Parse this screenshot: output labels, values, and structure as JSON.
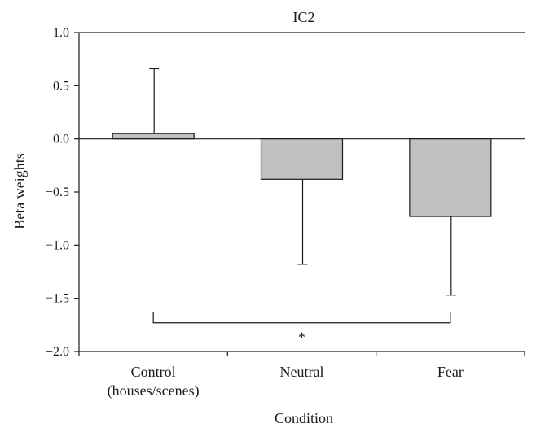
{
  "chart_data": {
    "type": "bar",
    "title": "IC2",
    "xlabel": "Condition",
    "ylabel": "Beta weights",
    "ylim": [
      -2.0,
      1.0
    ],
    "yticks": [
      1.0,
      0.5,
      0.0,
      -0.5,
      -1.0,
      -1.5,
      -2.0
    ],
    "ytick_labels": [
      "1.0",
      "0.5",
      "0.0",
      "−0.5",
      "−1.0",
      "−1.5",
      "−2.0"
    ],
    "categories": [
      {
        "line1": "Control",
        "line2": "(houses/scenes)"
      },
      {
        "line1": "Neutral",
        "line2": ""
      },
      {
        "line1": "Fear",
        "line2": ""
      }
    ],
    "values": [
      0.05,
      -0.38,
      -0.73
    ],
    "error_bar_ends": [
      0.66,
      -1.18,
      -1.47
    ],
    "significance": {
      "from": 0,
      "to": 2,
      "y": -1.73,
      "label": "*"
    },
    "bar_color": "#c0c0c0",
    "grid": false,
    "legend": "none"
  }
}
